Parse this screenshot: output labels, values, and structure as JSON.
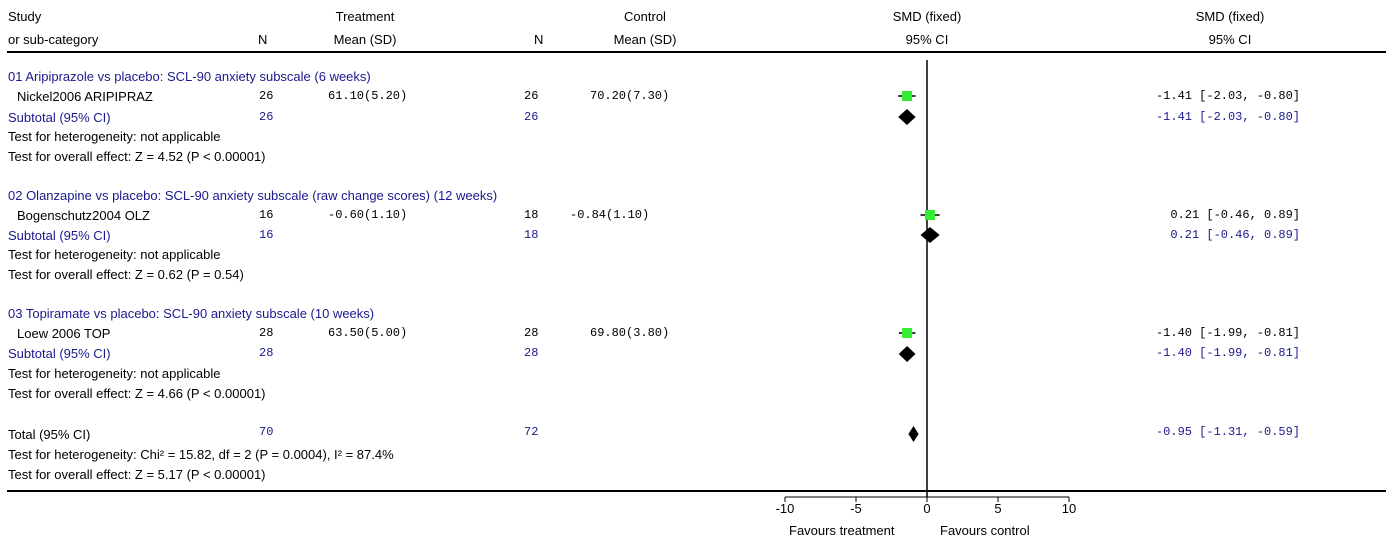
{
  "header": {
    "study_l1": "Study",
    "study_l2": "or sub-category",
    "n_label": "N",
    "treatment_l1": "Treatment",
    "treatment_l2": "Mean (SD)",
    "control_l1": "Control",
    "control_l2": "Mean (SD)",
    "smd_plot_l1": "SMD (fixed)",
    "smd_plot_l2": "95% CI",
    "smd_text_l1": "SMD (fixed)",
    "smd_text_l2": "95% CI"
  },
  "groups": [
    {
      "title": "01 Aripiprazole vs placebo: SCL-90 anxiety subscale (6 weeks)",
      "study": {
        "name": "Nickel2006 ARIPIPRAZ",
        "n_t": "26",
        "mean_t": "61.10(5.20)",
        "n_c": "26",
        "mean_c": "70.20(7.30)",
        "ci_text": "-1.41 [-2.03, -0.80]"
      },
      "subtotal": {
        "label": "Subtotal (95% CI)",
        "n_t": "26",
        "n_c": "26",
        "ci_text": "-1.41 [-2.03, -0.80]"
      },
      "heterogeneity": "Test for heterogeneity: not applicable",
      "overall": "Test for overall effect: Z = 4.52 (P < 0.00001)"
    },
    {
      "title": "02 Olanzapine vs placebo: SCL-90 anxiety subscale (raw change scores) (12 weeks)",
      "study": {
        "name": "Bogenschutz2004 OLZ",
        "n_t": "16",
        "mean_t": "-0.60(1.10)",
        "n_c": "18",
        "mean_c": "-0.84(1.10)",
        "ci_text": "0.21 [-0.46, 0.89]"
      },
      "subtotal": {
        "label": "Subtotal (95% CI)",
        "n_t": "16",
        "n_c": "18",
        "ci_text": "0.21 [-0.46, 0.89]"
      },
      "heterogeneity": "Test for heterogeneity: not applicable",
      "overall": "Test for overall effect: Z = 0.62 (P = 0.54)"
    },
    {
      "title": "03 Topiramate vs placebo: SCL-90 anxiety subscale (10 weeks)",
      "study": {
        "name": "Loew 2006 TOP",
        "n_t": "28",
        "mean_t": "63.50(5.00)",
        "n_c": "28",
        "mean_c": "69.80(3.80)",
        "ci_text": "-1.40 [-1.99, -0.81]"
      },
      "subtotal": {
        "label": "Subtotal (95% CI)",
        "n_t": "28",
        "n_c": "28",
        "ci_text": "-1.40 [-1.99, -0.81]"
      },
      "heterogeneity": "Test for heterogeneity: not applicable",
      "overall": "Test for overall effect: Z = 4.66 (P < 0.00001)"
    }
  ],
  "total": {
    "label": "Total (95% CI)",
    "n_t": "70",
    "n_c": "72",
    "ci_text": "-0.95 [-1.31, -0.59]",
    "heterogeneity": "Test for heterogeneity: Chi² = 15.82, df = 2 (P = 0.0004), I² = 87.4%",
    "overall": "Test for overall effect: Z = 5.17 (P < 0.00001)"
  },
  "axis": {
    "favours_left": "Favours treatment",
    "favours_right": "Favours control"
  },
  "colors": {
    "text": "#000000",
    "subtotal_text": "#1a1a8c",
    "study_box": "#33ee33",
    "diamond": "#000000"
  },
  "chart_data": {
    "type": "forest",
    "measure": "SMD (fixed)",
    "xlim": [
      -10,
      10
    ],
    "ticks": [
      -10,
      -5,
      0,
      5,
      10
    ],
    "studies": [
      {
        "name": "Nickel2006 ARIPIPRAZ",
        "smd": -1.41,
        "lo": -2.03,
        "hi": -0.8
      },
      {
        "name": "Bogenschutz2004 OLZ",
        "smd": 0.21,
        "lo": -0.46,
        "hi": 0.89
      },
      {
        "name": "Loew 2006 TOP",
        "smd": -1.4,
        "lo": -1.99,
        "hi": -0.81
      }
    ],
    "subtotals": [
      {
        "label": "Subtotal (95% CI)",
        "smd": -1.41,
        "lo": -2.03,
        "hi": -0.8
      },
      {
        "label": "Subtotal (95% CI)",
        "smd": 0.21,
        "lo": -0.46,
        "hi": 0.89
      },
      {
        "label": "Subtotal (95% CI)",
        "smd": -1.4,
        "lo": -1.99,
        "hi": -0.81
      }
    ],
    "total": {
      "label": "Total (95% CI)",
      "smd": -0.95,
      "lo": -1.31,
      "hi": -0.59
    }
  }
}
